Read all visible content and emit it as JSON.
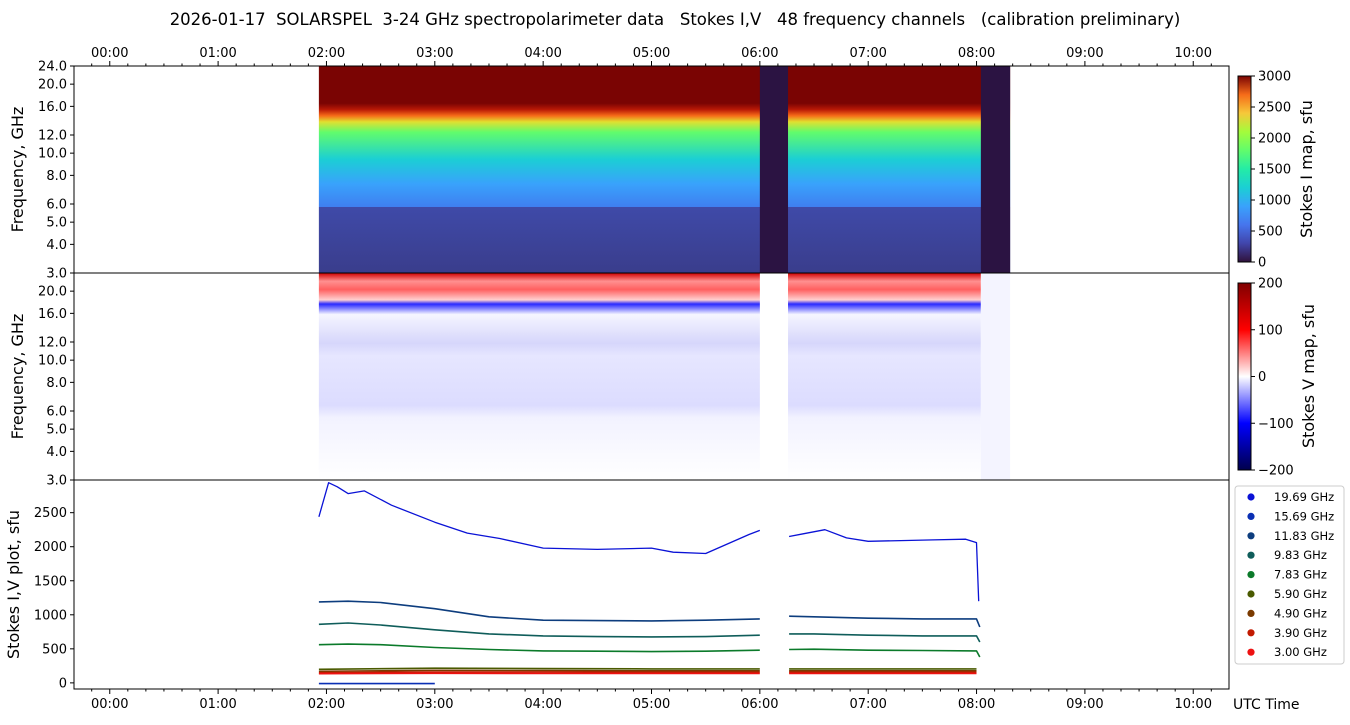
{
  "title": "2026-01-17  SOLARSPEL  3-24 GHz spectropolarimeter data   Stokes I,V   48 frequency channels   (calibration preliminary)",
  "x_axis": {
    "ticks": [
      "00:00",
      "01:00",
      "02:00",
      "03:00",
      "04:00",
      "05:00",
      "06:00",
      "07:00",
      "08:00",
      "09:00",
      "10:00"
    ],
    "tick_hours": [
      0,
      1,
      2,
      3,
      4,
      5,
      6,
      7,
      8,
      9,
      10
    ],
    "range_hours": [
      -0.33,
      10.33
    ],
    "label": "UTC Time"
  },
  "freq_axis": {
    "label": "Frequency, GHz",
    "range_ghz": [
      3.0,
      24.0
    ],
    "scale": "log",
    "top_panel_ticks": [
      "24.0",
      "20.0",
      "16.0",
      "12.0",
      "10.0",
      "8.0",
      "6.0",
      "5.0",
      "4.0",
      "3.0"
    ],
    "top_panel_tick_values": [
      24,
      20,
      16,
      12,
      10,
      8,
      6,
      5,
      4,
      3
    ],
    "middle_panel_ticks": [
      "20.0",
      "16.0",
      "12.0",
      "10.0",
      "8.0",
      "6.0",
      "5.0",
      "4.0",
      "3.0"
    ],
    "middle_panel_tick_values": [
      20,
      16,
      12,
      10,
      8,
      6,
      5,
      4,
      3
    ]
  },
  "colorbars": {
    "stokes_i": {
      "label": "Stokes I map, sfu",
      "ticks": [
        "3000",
        "2500",
        "2000",
        "1500",
        "1000",
        "500",
        "0"
      ],
      "tick_values": [
        3000,
        2500,
        2000,
        1500,
        1000,
        500,
        0
      ],
      "range": [
        0,
        3000
      ],
      "colormap": "turbo"
    },
    "stokes_v": {
      "label": "Stokes V map, sfu",
      "ticks": [
        "200",
        "100",
        "0",
        "−100",
        "−200"
      ],
      "tick_values": [
        200,
        100,
        0,
        -100,
        -200
      ],
      "range": [
        -200,
        200
      ],
      "colormap": "seismic"
    }
  },
  "observation": {
    "start_hour": 1.93,
    "end_hour": 8.31,
    "gaps_hours": [
      [
        6.0,
        6.26
      ],
      [
        8.04,
        8.31
      ]
    ],
    "colors": {
      "gap_fill": "#2b1342",
      "background": "#ffffff"
    }
  },
  "chart_data": {
    "type": "line",
    "ylabel": "Stokes I,V plot, sfu",
    "xlabel": "UTC Time",
    "ylim": [
      -90,
      2980
    ],
    "yticks": [
      "0",
      "500",
      "1000",
      "1500",
      "2000",
      "2500"
    ],
    "ytick_values": [
      0,
      500,
      1000,
      1500,
      2000,
      2500
    ],
    "grid": false,
    "legend_position": "right",
    "series": [
      {
        "name": "19.69 GHz",
        "color": "#0a12d6",
        "x": [
          1.93,
          2.02,
          2.1,
          2.2,
          2.35,
          2.6,
          3.0,
          3.3,
          3.6,
          4.0,
          4.5,
          5.0,
          5.2,
          5.5,
          5.9,
          6.0,
          6.27,
          6.4,
          6.6,
          6.8,
          7.0,
          7.3,
          7.6,
          7.9,
          8.0,
          8.02
        ],
        "y": [
          2440,
          2940,
          2880,
          2780,
          2820,
          2610,
          2360,
          2200,
          2120,
          1980,
          1960,
          1980,
          1920,
          1900,
          2180,
          2240,
          2150,
          2190,
          2250,
          2130,
          2080,
          2090,
          2100,
          2110,
          2060,
          1200
        ]
      },
      {
        "name": "15.69 GHz",
        "color": "#0a2fb4",
        "x": [
          1.93,
          2.5,
          3.0
        ],
        "y": [
          -10,
          -10,
          -10
        ]
      },
      {
        "name": "11.83 GHz",
        "color": "#0d3d7e",
        "x": [
          1.93,
          2.2,
          2.5,
          3.0,
          3.5,
          4.0,
          4.5,
          5.0,
          5.5,
          6.0,
          6.27,
          6.5,
          7.0,
          7.5,
          8.0,
          8.03
        ],
        "y": [
          1190,
          1200,
          1180,
          1090,
          970,
          920,
          915,
          910,
          920,
          940,
          980,
          970,
          950,
          940,
          940,
          820
        ]
      },
      {
        "name": "9.83 GHz",
        "color": "#0f5d5a",
        "x": [
          1.93,
          2.2,
          2.5,
          3.0,
          3.5,
          4.0,
          4.5,
          5.0,
          5.5,
          6.0,
          6.27,
          6.5,
          7.0,
          7.5,
          8.0,
          8.03
        ],
        "y": [
          860,
          880,
          850,
          780,
          720,
          690,
          680,
          675,
          680,
          700,
          720,
          720,
          700,
          690,
          690,
          600
        ]
      },
      {
        "name": "7.83 GHz",
        "color": "#0b7a2a",
        "x": [
          1.93,
          2.2,
          2.5,
          3.0,
          3.5,
          4.0,
          4.5,
          5.0,
          5.5,
          6.0,
          6.27,
          6.5,
          7.0,
          7.5,
          8.0,
          8.03
        ],
        "y": [
          560,
          570,
          560,
          520,
          490,
          470,
          465,
          460,
          465,
          480,
          490,
          495,
          480,
          475,
          470,
          380
        ]
      },
      {
        "name": "5.90 GHz",
        "color": "#4a5a00",
        "x": [
          1.93,
          3.0,
          4.0,
          5.0,
          6.0,
          6.27,
          7.0,
          8.0
        ],
        "y": [
          200,
          215,
          210,
          205,
          205,
          205,
          205,
          205
        ]
      },
      {
        "name": "4.90 GHz",
        "color": "#7a3a00",
        "x": [
          1.93,
          3.0,
          4.0,
          5.0,
          6.0,
          6.27,
          7.0,
          8.0
        ],
        "y": [
          170,
          185,
          180,
          178,
          178,
          178,
          178,
          178
        ]
      },
      {
        "name": "3.90 GHz",
        "color": "#c21a00",
        "x": [
          1.93,
          3.0,
          4.0,
          5.0,
          6.0,
          6.27,
          7.0,
          8.0
        ],
        "y": [
          150,
          160,
          158,
          156,
          156,
          156,
          156,
          156
        ]
      },
      {
        "name": "3.00 GHz",
        "color": "#ee1111",
        "x": [
          1.93,
          3.0,
          4.0,
          5.0,
          6.0,
          6.27,
          7.0,
          8.0
        ],
        "y": [
          135,
          140,
          138,
          137,
          137,
          137,
          137,
          137
        ]
      }
    ]
  }
}
